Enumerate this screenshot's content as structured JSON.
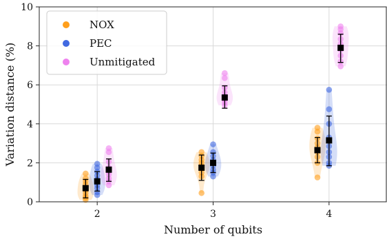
{
  "chart_data": {
    "type": "scatter",
    "xlabel": "Number of qubits",
    "ylabel": "Variation distance (%)",
    "xticks": [
      2,
      3,
      4
    ],
    "yticks": [
      0,
      2,
      4,
      6,
      8,
      10
    ],
    "xlim": [
      1.5,
      4.5
    ],
    "ylim": [
      0,
      10
    ],
    "grid": true,
    "legend_position": "top-left",
    "colors": {
      "NOX": "#ff9f1c",
      "PEC": "#4169e1",
      "Unmitigated": "#ee82ee",
      "mean": "#000000"
    },
    "series": [
      {
        "name": "NOX",
        "groups": [
          {
            "x": 1.9,
            "points": [
              0.1,
              0.2,
              0.3,
              0.45,
              0.6,
              0.75,
              0.9,
              1.05,
              1.2,
              1.45
            ],
            "mean": 0.7,
            "err": [
              0.2,
              1.15
            ]
          },
          {
            "x": 2.9,
            "points": [
              0.45,
              1.3,
              1.5,
              1.7,
              1.85,
              2.0,
              2.15,
              2.35,
              2.55
            ],
            "mean": 1.75,
            "err": [
              1.1,
              2.4
            ]
          },
          {
            "x": 3.9,
            "points": [
              1.25,
              2.0,
              2.3,
              2.55,
              2.8,
              3.0,
              3.25,
              3.6,
              3.8
            ],
            "mean": 2.65,
            "err": [
              2.0,
              3.3
            ]
          }
        ]
      },
      {
        "name": "PEC",
        "groups": [
          {
            "x": 2.0,
            "points": [
              0.35,
              0.5,
              0.7,
              0.85,
              1.0,
              1.15,
              1.35,
              1.55,
              1.75,
              1.95
            ],
            "mean": 1.05,
            "err": [
              0.55,
              1.55
            ]
          },
          {
            "x": 3.0,
            "points": [
              1.3,
              1.5,
              1.65,
              1.85,
              2.0,
              2.15,
              2.35,
              2.55,
              2.95
            ],
            "mean": 2.0,
            "err": [
              1.5,
              2.5
            ]
          },
          {
            "x": 4.0,
            "points": [
              1.85,
              2.0,
              2.3,
              2.55,
              2.85,
              3.3,
              4.0,
              4.75,
              5.75
            ],
            "mean": 3.15,
            "err": [
              1.85,
              4.4
            ]
          }
        ]
      },
      {
        "name": "Unmitigated",
        "groups": [
          {
            "x": 2.1,
            "points": [
              0.85,
              1.05,
              1.2,
              1.4,
              1.55,
              1.75,
              2.05,
              2.55,
              2.75
            ],
            "mean": 1.65,
            "err": [
              1.05,
              2.2
            ]
          },
          {
            "x": 3.1,
            "points": [
              4.95,
              5.1,
              5.25,
              5.4,
              5.6,
              5.85,
              6.35,
              6.6
            ],
            "mean": 5.35,
            "err": [
              4.8,
              5.95
            ]
          },
          {
            "x": 4.1,
            "points": [
              6.95,
              7.2,
              7.5,
              7.8,
              8.1,
              8.35,
              8.65,
              8.85,
              9.0
            ],
            "mean": 7.9,
            "err": [
              7.15,
              8.6
            ]
          }
        ]
      }
    ]
  }
}
